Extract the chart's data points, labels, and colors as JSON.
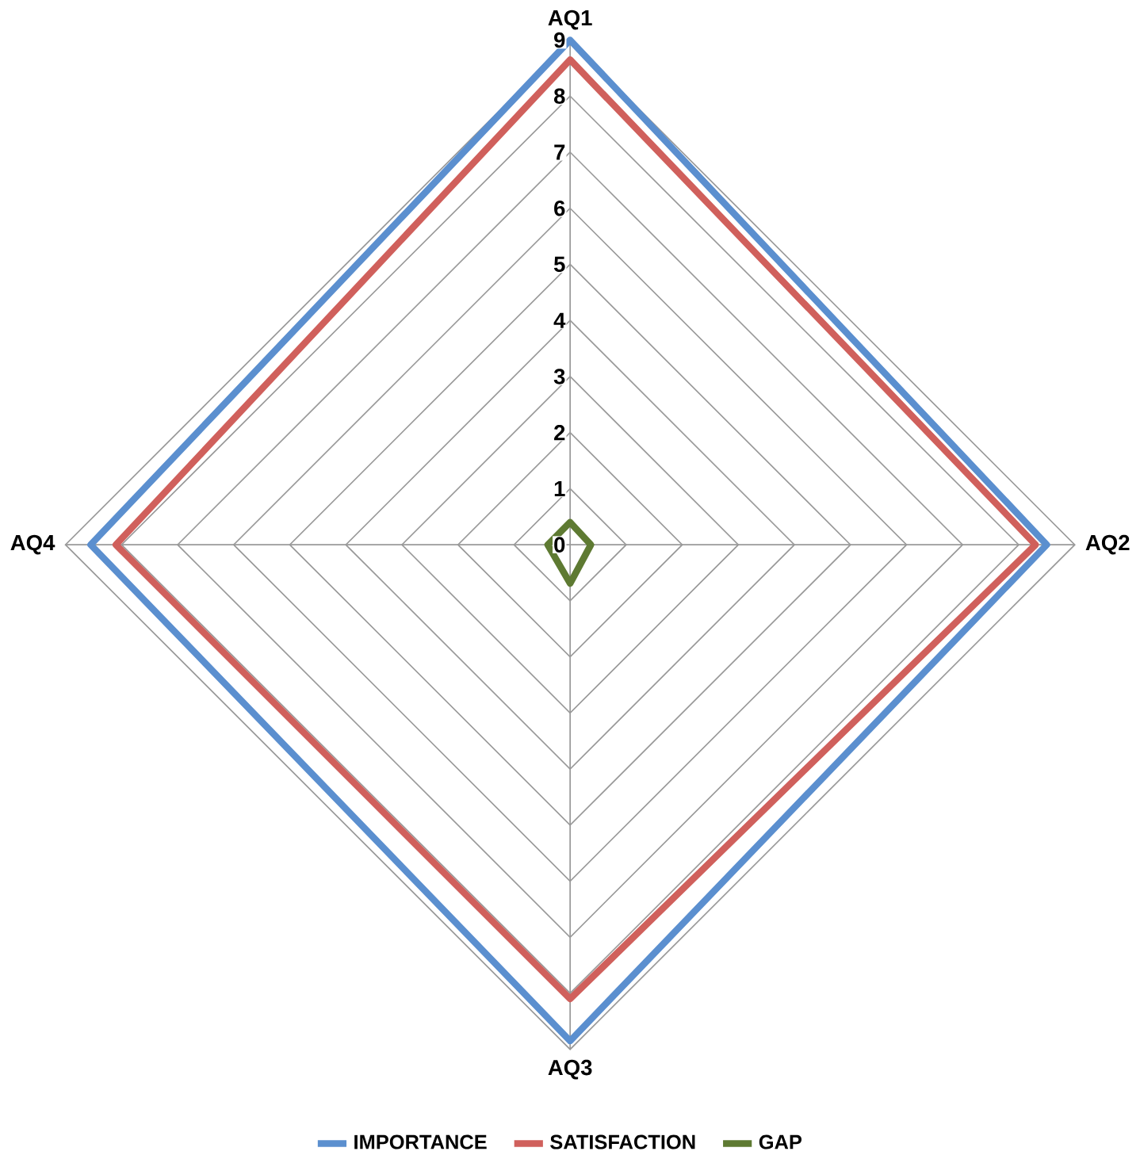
{
  "chart_data": {
    "type": "radar",
    "categories": [
      "AQ1",
      "AQ2",
      "AQ3",
      "AQ4"
    ],
    "series": [
      {
        "name": "IMPORTANCE",
        "color": "#5b8fcf",
        "values": [
          9.0,
          8.5,
          8.85,
          8.55
        ]
      },
      {
        "name": "SATISFACTION",
        "color": "#d0605c",
        "values": [
          8.65,
          8.3,
          8.1,
          8.1
        ]
      },
      {
        "name": "GAP",
        "color": "#5e7a32",
        "values": [
          0.4,
          0.37,
          0.69,
          0.4
        ]
      }
    ],
    "ylim": [
      0,
      9
    ],
    "yticks": [
      0,
      1,
      2,
      3,
      4,
      5,
      6,
      7,
      8,
      9
    ],
    "grid": true,
    "legend": "bottom"
  }
}
